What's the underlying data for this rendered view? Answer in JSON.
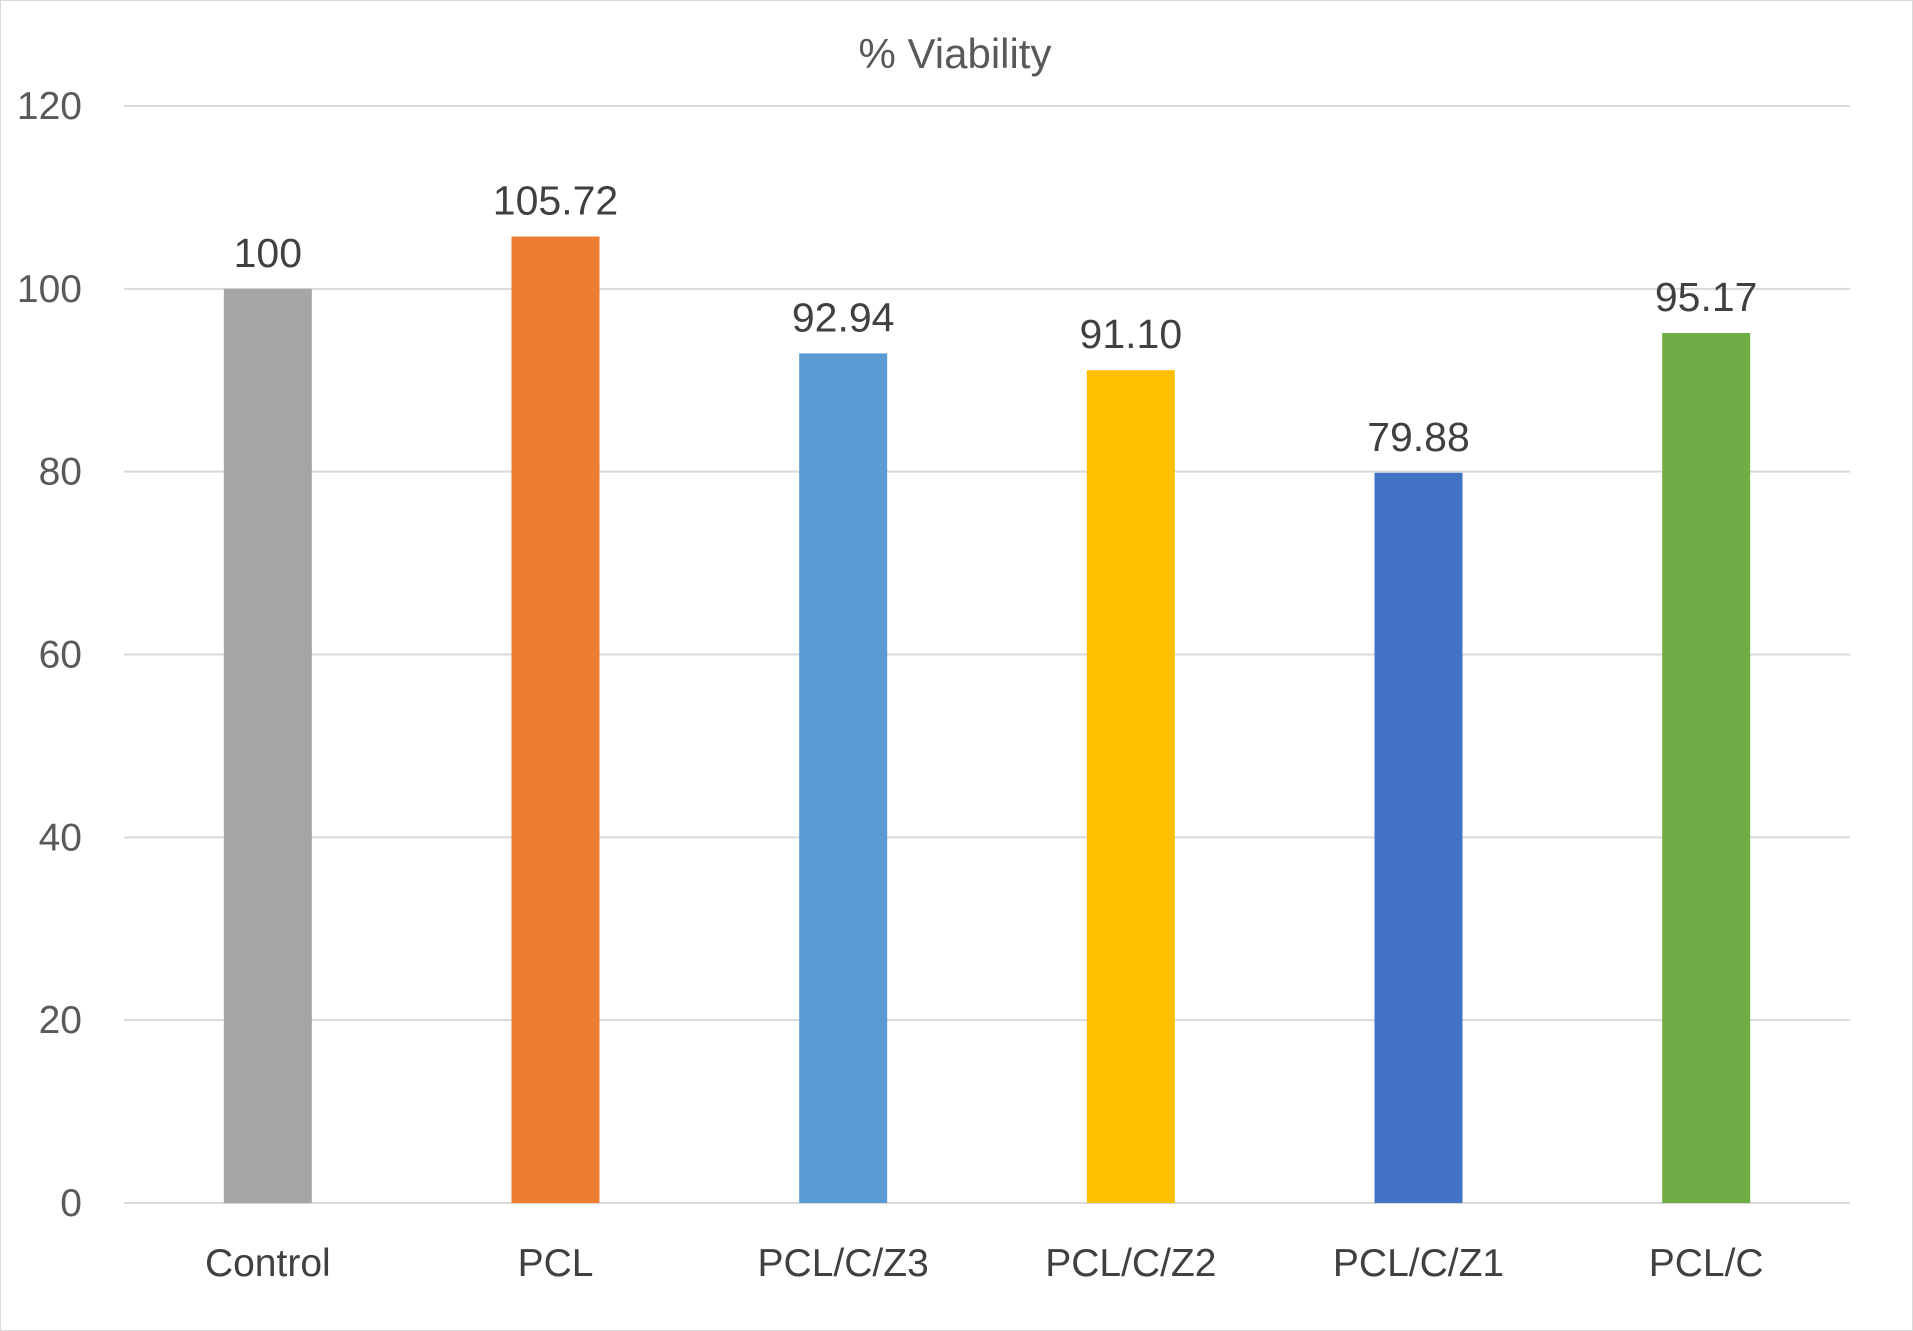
{
  "chart_data": {
    "type": "bar",
    "title": "% Viability",
    "xlabel": "",
    "ylabel": "",
    "categories": [
      "Control",
      "PCL",
      "PCL/C/Z3",
      "PCL/C/Z2",
      "PCL/C/Z1",
      "PCL/C"
    ],
    "values": [
      100,
      105.72,
      92.94,
      91.1,
      79.88,
      95.17
    ],
    "value_labels": [
      "100",
      "105.72",
      "92.94",
      "91.10",
      "79.88",
      "95.17"
    ],
    "colors": [
      "#a5a5a5",
      "#ed7d31",
      "#5b9bd5",
      "#ffc000",
      "#4472c4",
      "#70ad47"
    ],
    "ylim": [
      0,
      120
    ],
    "yticks": [
      0,
      20,
      40,
      60,
      80,
      100,
      120
    ],
    "grid": true,
    "legend": "none"
  }
}
